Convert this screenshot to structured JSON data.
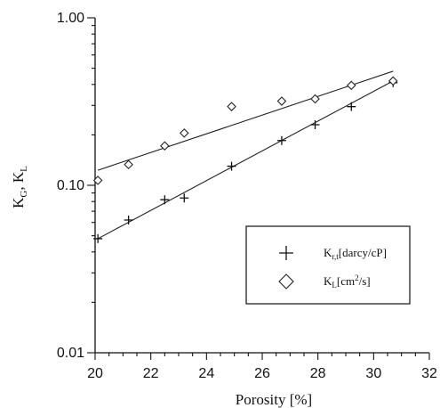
{
  "chart_data": {
    "type": "scatter",
    "xlabel": "Porosity [%]",
    "ylabel": "K",
    "ylabel_sub1": "G",
    "ylabel_sep": ", K",
    "ylabel_sub2": "L",
    "xlim": [
      20,
      32
    ],
    "ylim": [
      0.01,
      1.0
    ],
    "y_scale": "log",
    "x_ticks": [
      "20",
      "22",
      "24",
      "26",
      "28",
      "30",
      "32"
    ],
    "y_ticks": [
      "0.01",
      "0.10",
      "1.00"
    ],
    "grid": false,
    "legend_position": "lower-right",
    "series": [
      {
        "name": "K",
        "name_sub": "r,t",
        "name_suffix": "[darcy/cP]",
        "marker": "plus",
        "x": [
          20.1,
          21.2,
          22.5,
          23.2,
          24.9,
          26.7,
          27.9,
          29.2,
          30.7
        ],
        "y": [
          0.048,
          0.062,
          0.082,
          0.084,
          0.13,
          0.185,
          0.23,
          0.295,
          0.41
        ],
        "fit": {
          "x": [
            20.1,
            30.7
          ],
          "y": [
            0.048,
            0.42
          ]
        }
      },
      {
        "name": "K",
        "name_sub": "L",
        "name_suffix": "[cm",
        "name_sup": "2",
        "name_suffix2": "/s]",
        "marker": "diamond",
        "x": [
          20.1,
          21.2,
          22.5,
          23.2,
          24.9,
          26.7,
          27.9,
          29.2,
          30.7
        ],
        "y": [
          0.107,
          0.133,
          0.172,
          0.205,
          0.295,
          0.318,
          0.328,
          0.395,
          0.42
        ],
        "fit": {
          "x": [
            20.1,
            30.7
          ],
          "y": [
            0.123,
            0.48
          ]
        }
      }
    ]
  }
}
